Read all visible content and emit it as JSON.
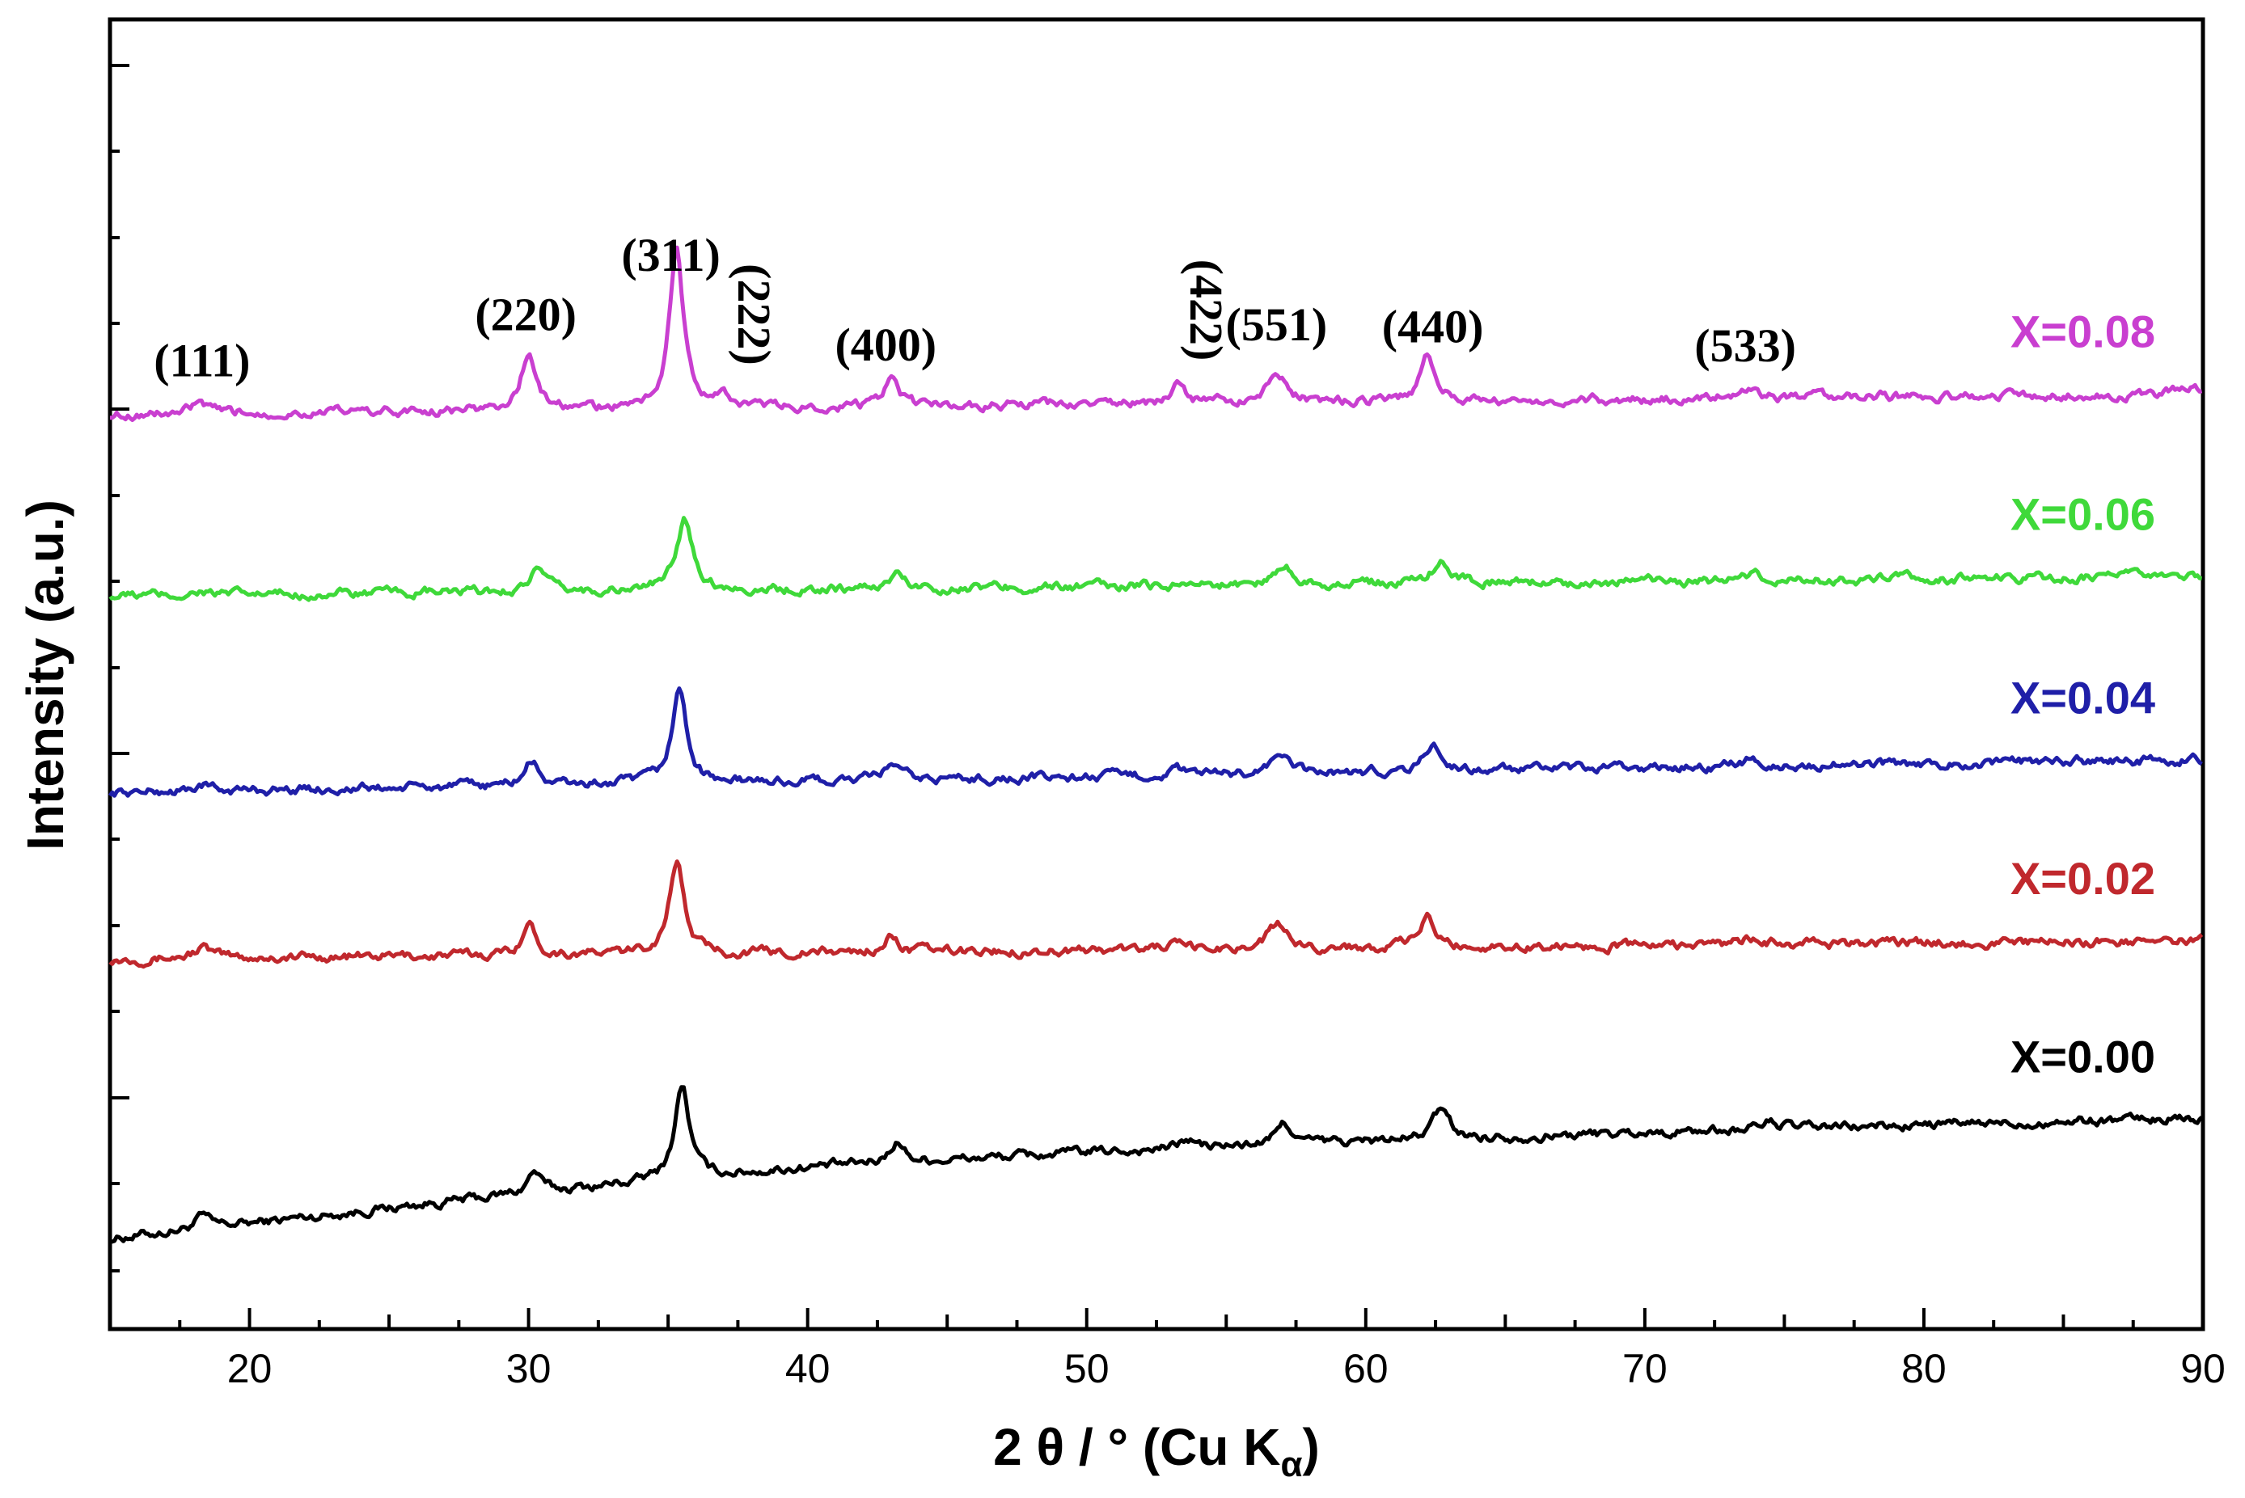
{
  "chart_data": {
    "type": "line",
    "title": "",
    "xlabel": "2 θ / ° (Cu K",
    "xlabel_sub": "α",
    "xlabel_end": ")",
    "ylabel": "Intensity (a.u.)",
    "xlim": [
      15,
      90
    ],
    "xticks": [
      20,
      30,
      40,
      50,
      60,
      70,
      80,
      90
    ],
    "y_ticks_shown": false,
    "grid": false,
    "legend": "inline labels at right end of each trace",
    "series": [
      {
        "name": "X=0.00",
        "color": "#000000",
        "offset": 0,
        "baseline": [
          [
            15,
            0.0
          ],
          [
            20,
            0.1
          ],
          [
            30,
            0.3
          ],
          [
            40,
            0.47
          ],
          [
            50,
            0.57
          ],
          [
            60,
            0.64
          ],
          [
            70,
            0.7
          ],
          [
            80,
            0.75
          ],
          [
            90,
            0.8
          ]
        ],
        "peaks": [
          [
            18.3,
            0.08,
            0.4
          ],
          [
            30.2,
            0.14,
            0.35
          ],
          [
            35.5,
            0.62,
            0.4
          ],
          [
            43.2,
            0.14,
            0.4
          ],
          [
            53.6,
            0.06,
            0.4
          ],
          [
            57.1,
            0.14,
            0.45
          ],
          [
            62.7,
            0.2,
            0.45
          ],
          [
            74.5,
            0.05,
            0.6
          ]
        ]
      },
      {
        "name": "X=0.02",
        "color": "#c0282d",
        "offset": 1.85,
        "baseline": [
          [
            15,
            0.0
          ],
          [
            90,
            0.12
          ]
        ],
        "peaks": [
          [
            18.3,
            0.07,
            0.45
          ],
          [
            30.0,
            0.2,
            0.4
          ],
          [
            35.3,
            0.62,
            0.4
          ],
          [
            43.0,
            0.1,
            0.4
          ],
          [
            53.0,
            0.04,
            0.4
          ],
          [
            56.8,
            0.16,
            0.5
          ],
          [
            62.2,
            0.2,
            0.4
          ],
          [
            73.8,
            0.04,
            0.6
          ]
        ]
      },
      {
        "name": "X=0.04",
        "color": "#1f1fa8",
        "offset": 2.95,
        "baseline": [
          [
            15,
            0.0
          ],
          [
            90,
            0.22
          ]
        ],
        "peaks": [
          [
            18.3,
            0.04,
            0.4
          ],
          [
            30.1,
            0.16,
            0.4
          ],
          [
            35.4,
            0.62,
            0.4
          ],
          [
            43.0,
            0.11,
            0.4
          ],
          [
            53.2,
            0.04,
            0.4
          ],
          [
            56.9,
            0.14,
            0.45
          ],
          [
            62.4,
            0.18,
            0.45
          ],
          [
            73.8,
            0.04,
            0.6
          ]
        ]
      },
      {
        "name": "X=0.06",
        "color": "#3fd93a",
        "offset": 4.25,
        "baseline": [
          [
            15,
            0.0
          ],
          [
            90,
            0.13
          ]
        ],
        "peaks": [
          [
            18.3,
            0.03,
            0.4
          ],
          [
            30.3,
            0.15,
            0.4
          ],
          [
            35.6,
            0.47,
            0.45
          ],
          [
            43.2,
            0.1,
            0.4
          ],
          [
            53.5,
            0.03,
            0.4
          ],
          [
            57.1,
            0.13,
            0.5
          ],
          [
            62.7,
            0.15,
            0.5
          ],
          [
            73.8,
            0.03,
            0.6
          ]
        ]
      },
      {
        "name": "X=0.08",
        "color": "#c93fd0",
        "offset": 5.45,
        "baseline": [
          [
            15,
            0.0
          ],
          [
            90,
            0.14
          ]
        ],
        "peaks": [
          [
            18.2,
            0.07,
            0.4
          ],
          [
            30.0,
            0.38,
            0.4
          ],
          [
            35.3,
            1.05,
            0.38
          ],
          [
            37.0,
            0.08,
            0.35
          ],
          [
            43.0,
            0.17,
            0.4
          ],
          [
            53.3,
            0.12,
            0.4
          ],
          [
            56.8,
            0.23,
            0.45
          ],
          [
            62.2,
            0.29,
            0.4
          ],
          [
            73.6,
            0.06,
            0.6
          ],
          [
            89.6,
            0.06,
            0.4
          ]
        ]
      }
    ],
    "annotations": [
      {
        "text": "(111)",
        "x": 18.3,
        "rotated": false
      },
      {
        "text": "(220)",
        "x": 29.9,
        "rotated": false
      },
      {
        "text": "(311)",
        "x": 35.1,
        "rotated": false
      },
      {
        "text": "(222)",
        "x": 37.0,
        "rotated": true
      },
      {
        "text": "(400)",
        "x": 42.8,
        "rotated": false
      },
      {
        "text": "(422)",
        "x": 53.2,
        "rotated": true
      },
      {
        "text": "(551)",
        "x": 56.8,
        "rotated": false
      },
      {
        "text": "(440)",
        "x": 62.4,
        "rotated": false
      },
      {
        "text": "(533)",
        "x": 73.6,
        "rotated": false
      }
    ]
  }
}
